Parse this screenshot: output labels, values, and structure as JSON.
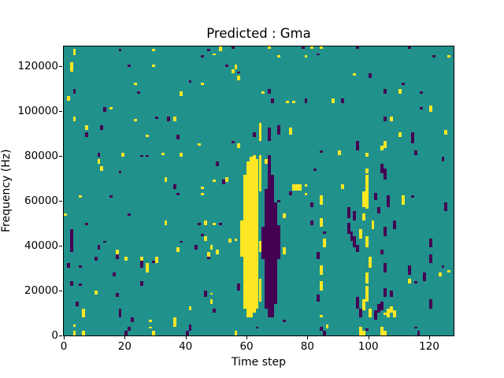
{
  "figure": {
    "title": "Predicted : Gma"
  },
  "chart_data": {
    "type": "heatmap",
    "title": "Predicted : Gma",
    "xlabel": "Time step",
    "ylabel": "Frequency (Hz)",
    "n_cols": 128,
    "n_rows": 128,
    "xlim": [
      0,
      128
    ],
    "ylim": [
      0,
      128850
    ],
    "xticks": [
      0,
      20,
      40,
      60,
      80,
      100,
      120
    ],
    "yticks": [
      0,
      20000,
      40000,
      60000,
      80000,
      100000,
      120000
    ],
    "grid": false,
    "legend": null,
    "colormap": {
      "name": "viridis-3-level",
      "background": "#21918c",
      "yellow": "#fde725",
      "purple": "#440154"
    },
    "cells_format": "[col, rowStart, rowEnd, colSpan?] with rows counted from bottom (0) to top (127)",
    "yellow_cells": [
      [
        58,
        35,
        50
      ],
      [
        59,
        12,
        70
      ],
      [
        60,
        8,
        76
      ],
      [
        61,
        8,
        78
      ],
      [
        62,
        10,
        79
      ],
      [
        63,
        12,
        77
      ],
      [
        64,
        15,
        24
      ],
      [
        64,
        37,
        41
      ],
      [
        64,
        64,
        79
      ],
      [
        64,
        86,
        93
      ],
      [
        57,
        83,
        84
      ],
      [
        3,
        124,
        126
      ],
      [
        29,
        126,
        126
      ],
      [
        51,
        126,
        127
      ],
      [
        49,
        124,
        124
      ],
      [
        2,
        117,
        120
      ],
      [
        29,
        119,
        119
      ],
      [
        56,
        118,
        119
      ],
      [
        55,
        116,
        117
      ],
      [
        45,
        111,
        111
      ],
      [
        23,
        111,
        111
      ],
      [
        57,
        113,
        114
      ],
      [
        38,
        106,
        107
      ],
      [
        1,
        104,
        105
      ],
      [
        15,
        100,
        100
      ],
      [
        23,
        95,
        95
      ],
      [
        36,
        95,
        96
      ],
      [
        3,
        95,
        96
      ],
      [
        7,
        91,
        92
      ],
      [
        27,
        88,
        88
      ],
      [
        44,
        84,
        84
      ],
      [
        11,
        76,
        77
      ],
      [
        12,
        73,
        74
      ],
      [
        19,
        79,
        80
      ],
      [
        32,
        80,
        80
      ],
      [
        38,
        79,
        80
      ],
      [
        33,
        68,
        69
      ],
      [
        53,
        68,
        69
      ],
      [
        49,
        68,
        68
      ],
      [
        45,
        65,
        65
      ],
      [
        67,
        127,
        127
      ],
      [
        81,
        127,
        127
      ],
      [
        84,
        127,
        127
      ],
      [
        126,
        123,
        123
      ],
      [
        70,
        123,
        123
      ],
      [
        79,
        123,
        123
      ],
      [
        95,
        115,
        115
      ],
      [
        65,
        107,
        107
      ],
      [
        73,
        103,
        103
      ],
      [
        75,
        103,
        103
      ],
      [
        88,
        103,
        104
      ],
      [
        110,
        107,
        108
      ],
      [
        120,
        99,
        101
      ],
      [
        107,
        95,
        96
      ],
      [
        74,
        89,
        91
      ],
      [
        110,
        88,
        89
      ],
      [
        125,
        89,
        90
      ],
      [
        105,
        83,
        85
      ],
      [
        90,
        80,
        81
      ],
      [
        99,
        79,
        80
      ],
      [
        66,
        76,
        77
      ],
      [
        99,
        72,
        73
      ],
      [
        91,
        65,
        66
      ],
      [
        75,
        64,
        66,
        3
      ],
      [
        79,
        66,
        66
      ],
      [
        5,
        61,
        61
      ],
      [
        45,
        62,
        62
      ],
      [
        0,
        53,
        53
      ],
      [
        33,
        49,
        50
      ],
      [
        46,
        49,
        50
      ],
      [
        49,
        49,
        49
      ],
      [
        46,
        42,
        43
      ],
      [
        17,
        36,
        37
      ],
      [
        37,
        37,
        38
      ],
      [
        47,
        35,
        36
      ],
      [
        48,
        38,
        39
      ],
      [
        50,
        36,
        37
      ],
      [
        54,
        41,
        42
      ],
      [
        56,
        42,
        42
      ],
      [
        20,
        33,
        34
      ],
      [
        25,
        33,
        34
      ],
      [
        27,
        28,
        31
      ],
      [
        30,
        32,
        34
      ],
      [
        10,
        18,
        19
      ],
      [
        48,
        18,
        18
      ],
      [
        48,
        14,
        15
      ],
      [
        6,
        8,
        11
      ],
      [
        41,
        11,
        12
      ],
      [
        36,
        4,
        7
      ],
      [
        28,
        6,
        6
      ],
      [
        28,
        3,
        3
      ],
      [
        3,
        4,
        4
      ],
      [
        3,
        0,
        1
      ],
      [
        6,
        0,
        1
      ],
      [
        29,
        0,
        1
      ],
      [
        56,
        0,
        1
      ],
      [
        72,
        52,
        53
      ],
      [
        72,
        36,
        38
      ],
      [
        79,
        62,
        62
      ],
      [
        84,
        58,
        61
      ],
      [
        84,
        48,
        51
      ],
      [
        85,
        39,
        42
      ],
      [
        84,
        27,
        30
      ],
      [
        84,
        20,
        23
      ],
      [
        84,
        8,
        8
      ],
      [
        86,
        3,
        4
      ],
      [
        111,
        58,
        61
      ],
      [
        113,
        23,
        24
      ],
      [
        123,
        26,
        27
      ],
      [
        126,
        28,
        28
      ],
      [
        98,
        57,
        63
      ],
      [
        99,
        56,
        70
      ],
      [
        98,
        51,
        53
      ],
      [
        101,
        47,
        50
      ],
      [
        97,
        43,
        46
      ],
      [
        99,
        39,
        43
      ],
      [
        100,
        30,
        34
      ],
      [
        99,
        23,
        27
      ],
      [
        99,
        15,
        21
      ],
      [
        98,
        11,
        15
      ],
      [
        100,
        8,
        11
      ],
      [
        106,
        8,
        11
      ],
      [
        108,
        8,
        10
      ],
      [
        107,
        10,
        12
      ],
      [
        104,
        82,
        83
      ],
      [
        104,
        0,
        3
      ],
      [
        97,
        0,
        3
      ],
      [
        105,
        9,
        9
      ],
      [
        105,
        0,
        1
      ],
      [
        98,
        0,
        1
      ]
    ],
    "purple_cells": [
      [
        66,
        12,
        64
      ],
      [
        67,
        8,
        79
      ],
      [
        68,
        8,
        70
      ],
      [
        69,
        14,
        58
      ],
      [
        70,
        34,
        48
      ],
      [
        65,
        34,
        47
      ],
      [
        67,
        86,
        91
      ],
      [
        18,
        126,
        126
      ],
      [
        47,
        126,
        126
      ],
      [
        55,
        127,
        127
      ],
      [
        45,
        123,
        123
      ],
      [
        21,
        119,
        119
      ],
      [
        53,
        119,
        119
      ],
      [
        57,
        116,
        116
      ],
      [
        41,
        112,
        112
      ],
      [
        24,
        107,
        107
      ],
      [
        3,
        107,
        108
      ],
      [
        13,
        99,
        100
      ],
      [
        30,
        96,
        96
      ],
      [
        34,
        95,
        96
      ],
      [
        12,
        91,
        92
      ],
      [
        7,
        88,
        89
      ],
      [
        37,
        87,
        88
      ],
      [
        55,
        85,
        85
      ],
      [
        62,
        88,
        89
      ],
      [
        11,
        79,
        80
      ],
      [
        25,
        79,
        79
      ],
      [
        27,
        79,
        79
      ],
      [
        18,
        72,
        72
      ],
      [
        50,
        75,
        76
      ],
      [
        52,
        67,
        68
      ],
      [
        36,
        65,
        66
      ],
      [
        78,
        127,
        127
      ],
      [
        96,
        127,
        127
      ],
      [
        113,
        127,
        127
      ],
      [
        83,
        124,
        124
      ],
      [
        121,
        123,
        123
      ],
      [
        100,
        114,
        115
      ],
      [
        111,
        111,
        111
      ],
      [
        67,
        107,
        108
      ],
      [
        68,
        103,
        104
      ],
      [
        79,
        103,
        104
      ],
      [
        91,
        103,
        104
      ],
      [
        105,
        107,
        108
      ],
      [
        117,
        107,
        107
      ],
      [
        117,
        100,
        100
      ],
      [
        105,
        95,
        96
      ],
      [
        114,
        85,
        89
      ],
      [
        96,
        82,
        85
      ],
      [
        84,
        81,
        81
      ],
      [
        115,
        80,
        81
      ],
      [
        70,
        89,
        92
      ],
      [
        82,
        73,
        73
      ],
      [
        104,
        72,
        75
      ],
      [
        124,
        77,
        78
      ],
      [
        102,
        60,
        62
      ],
      [
        15,
        61,
        61
      ],
      [
        37,
        62,
        62
      ],
      [
        21,
        53,
        53
      ],
      [
        7,
        49,
        49
      ],
      [
        44,
        49,
        49
      ],
      [
        51,
        49,
        49
      ],
      [
        2,
        37,
        46
      ],
      [
        45,
        44,
        44
      ],
      [
        13,
        41,
        41
      ],
      [
        11,
        38,
        39
      ],
      [
        38,
        41,
        41
      ],
      [
        43,
        38,
        39
      ],
      [
        47,
        34,
        34
      ],
      [
        17,
        34,
        35
      ],
      [
        10,
        33,
        34
      ],
      [
        1,
        30,
        31
      ],
      [
        5,
        30,
        30
      ],
      [
        25,
        30,
        32
      ],
      [
        29,
        32,
        32
      ],
      [
        16,
        26,
        27
      ],
      [
        25,
        22,
        23
      ],
      [
        2,
        22,
        23
      ],
      [
        5,
        22,
        22
      ],
      [
        4,
        13,
        14
      ],
      [
        17,
        17,
        18
      ],
      [
        46,
        17,
        19
      ],
      [
        49,
        10,
        11
      ],
      [
        18,
        8,
        11
      ],
      [
        22,
        6,
        7
      ],
      [
        41,
        2,
        4
      ],
      [
        21,
        2,
        3
      ],
      [
        20,
        0,
        1
      ],
      [
        40,
        0,
        1
      ],
      [
        57,
        20,
        22
      ],
      [
        63,
        3,
        3
      ],
      [
        74,
        62,
        63
      ],
      [
        70,
        59,
        59
      ],
      [
        81,
        57,
        58
      ],
      [
        81,
        49,
        50
      ],
      [
        85,
        45,
        45
      ],
      [
        83,
        34,
        36
      ],
      [
        83,
        15,
        17
      ],
      [
        84,
        2,
        3
      ],
      [
        93,
        52,
        56
      ],
      [
        93,
        45,
        49
      ],
      [
        94,
        42,
        45
      ],
      [
        95,
        51,
        54
      ],
      [
        95,
        39,
        43
      ],
      [
        96,
        37,
        39
      ],
      [
        103,
        54,
        56
      ],
      [
        105,
        44,
        47
      ],
      [
        104,
        36,
        37
      ],
      [
        105,
        28,
        31
      ],
      [
        105,
        17,
        20
      ],
      [
        103,
        10,
        13
      ],
      [
        102,
        7,
        10
      ],
      [
        97,
        8,
        11
      ],
      [
        96,
        12,
        16
      ],
      [
        99,
        2,
        2
      ],
      [
        105,
        69,
        73
      ],
      [
        106,
        57,
        61
      ],
      [
        107,
        17,
        19
      ],
      [
        104,
        11,
        14
      ],
      [
        108,
        47,
        50
      ],
      [
        114,
        61,
        61
      ],
      [
        125,
        55,
        58
      ],
      [
        113,
        27,
        30
      ],
      [
        115,
        23,
        23
      ],
      [
        118,
        24,
        27
      ],
      [
        120,
        39,
        42
      ],
      [
        120,
        32,
        35
      ],
      [
        120,
        12,
        15
      ],
      [
        124,
        30,
        30
      ],
      [
        115,
        3,
        3
      ],
      [
        116,
        0,
        1
      ],
      [
        85,
        0,
        1
      ],
      [
        72,
        6,
        6
      ]
    ]
  }
}
